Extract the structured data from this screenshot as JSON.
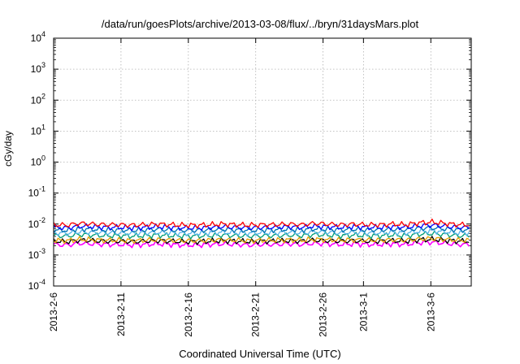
{
  "chart_data": {
    "type": "line",
    "title": "/data/run/goesPlots/archive/2013-03-08/flux/../bryn/31daysMars.plot",
    "xlabel": "Coordinated Universal Time (UTC)",
    "ylabel": "cGy/day",
    "xlim": [
      "2013-02-06",
      "2013-03-09"
    ],
    "x_ticks": [
      "2013-2-6",
      "2013-2-11",
      "2013-2-16",
      "2013-2-21",
      "2013-2-26",
      "2013-3-1",
      "2013-3-6"
    ],
    "y_scale": "log",
    "ylim": [
      0.0001,
      10000
    ],
    "y_ticks": [
      {
        "base": "10",
        "exp": "4",
        "value": 10000
      },
      {
        "base": "10",
        "exp": "3",
        "value": 1000
      },
      {
        "base": "10",
        "exp": "2",
        "value": 100
      },
      {
        "base": "10",
        "exp": "1",
        "value": 10
      },
      {
        "base": "10",
        "exp": "0",
        "value": 1
      },
      {
        "base": "10",
        "exp": "-1",
        "value": 0.1
      },
      {
        "base": "10",
        "exp": "-2",
        "value": 0.01
      },
      {
        "base": "10",
        "exp": "-3",
        "value": 0.001
      },
      {
        "base": "10",
        "exp": "-4",
        "value": 0.0001
      }
    ],
    "grid": true,
    "series": [
      {
        "color": "#ff00ff",
        "values": [
          0.0022,
          0.0021,
          0.0024,
          0.0023,
          0.0022,
          0.0022,
          0.0021,
          0.0022,
          0.0023,
          0.0022,
          0.0021,
          0.0021,
          0.0022,
          0.0023,
          0.0022,
          0.0021,
          0.0022,
          0.0022,
          0.0023,
          0.0022,
          0.0024,
          0.0023,
          0.0022,
          0.0023,
          0.0022,
          0.0022,
          0.0023,
          0.0022,
          0.0025,
          0.0026,
          0.0024,
          0.0022
        ]
      },
      {
        "color": "#000000",
        "values": [
          0.0028,
          0.0027,
          0.003,
          0.0029,
          0.0028,
          0.0028,
          0.0027,
          0.0028,
          0.0029,
          0.0028,
          0.0027,
          0.0027,
          0.0028,
          0.0029,
          0.0028,
          0.0027,
          0.0028,
          0.0028,
          0.0029,
          0.0028,
          0.003,
          0.0029,
          0.0028,
          0.0029,
          0.0028,
          0.0028,
          0.0029,
          0.0028,
          0.0031,
          0.0032,
          0.003,
          0.0028
        ]
      },
      {
        "color": "#e69f00",
        "values": [
          0.003,
          0.0029,
          0.0032,
          0.0031,
          0.003,
          0.003,
          0.0029,
          0.003,
          0.0031,
          0.003,
          0.0029,
          0.0029,
          0.003,
          0.0031,
          0.003,
          0.0029,
          0.003,
          0.003,
          0.0031,
          0.003,
          0.0032,
          0.0031,
          0.003,
          0.0031,
          0.003,
          0.003,
          0.0031,
          0.003,
          0.0033,
          0.0034,
          0.0032,
          0.003
        ]
      },
      {
        "color": "#009e73",
        "values": [
          0.0042,
          0.0041,
          0.0046,
          0.0044,
          0.0042,
          0.0042,
          0.0041,
          0.0042,
          0.0044,
          0.0042,
          0.0041,
          0.0041,
          0.0042,
          0.0044,
          0.0042,
          0.0041,
          0.0042,
          0.0042,
          0.0044,
          0.0042,
          0.0046,
          0.0044,
          0.0042,
          0.0044,
          0.0042,
          0.0042,
          0.0044,
          0.0042,
          0.0047,
          0.0049,
          0.0046,
          0.0042
        ]
      },
      {
        "color": "#56b4e9",
        "values": [
          0.0052,
          0.005,
          0.0056,
          0.0054,
          0.0052,
          0.0052,
          0.005,
          0.0052,
          0.0054,
          0.0052,
          0.005,
          0.005,
          0.0052,
          0.0054,
          0.0052,
          0.005,
          0.0052,
          0.0052,
          0.0054,
          0.0052,
          0.0056,
          0.0054,
          0.0052,
          0.0054,
          0.0052,
          0.0052,
          0.0054,
          0.0052,
          0.0058,
          0.006,
          0.0056,
          0.0052
        ]
      },
      {
        "color": "#0072b2",
        "values": [
          0.0065,
          0.0063,
          0.007,
          0.0068,
          0.0065,
          0.0065,
          0.0063,
          0.0065,
          0.0068,
          0.0065,
          0.0063,
          0.0063,
          0.0065,
          0.0068,
          0.0065,
          0.0063,
          0.0065,
          0.0065,
          0.0068,
          0.0065,
          0.007,
          0.0068,
          0.0065,
          0.0068,
          0.0065,
          0.0065,
          0.0068,
          0.0065,
          0.0073,
          0.0076,
          0.007,
          0.0065
        ]
      },
      {
        "color": "#0000ff",
        "values": [
          0.0078,
          0.0075,
          0.0085,
          0.0082,
          0.0078,
          0.0078,
          0.0075,
          0.0078,
          0.0082,
          0.0078,
          0.0075,
          0.0075,
          0.0078,
          0.0082,
          0.0078,
          0.0075,
          0.0078,
          0.0078,
          0.0082,
          0.0078,
          0.0085,
          0.0082,
          0.0078,
          0.0082,
          0.0078,
          0.0078,
          0.0082,
          0.0078,
          0.0088,
          0.0092,
          0.0085,
          0.0078
        ]
      },
      {
        "color": "#ff0000",
        "values": [
          0.0095,
          0.0092,
          0.0105,
          0.01,
          0.0095,
          0.0095,
          0.0092,
          0.0095,
          0.01,
          0.0095,
          0.0092,
          0.0092,
          0.0095,
          0.01,
          0.0095,
          0.0092,
          0.0095,
          0.0095,
          0.01,
          0.0095,
          0.0105,
          0.01,
          0.0095,
          0.01,
          0.0095,
          0.0095,
          0.01,
          0.0095,
          0.011,
          0.0115,
          0.0105,
          0.0095
        ]
      }
    ]
  }
}
